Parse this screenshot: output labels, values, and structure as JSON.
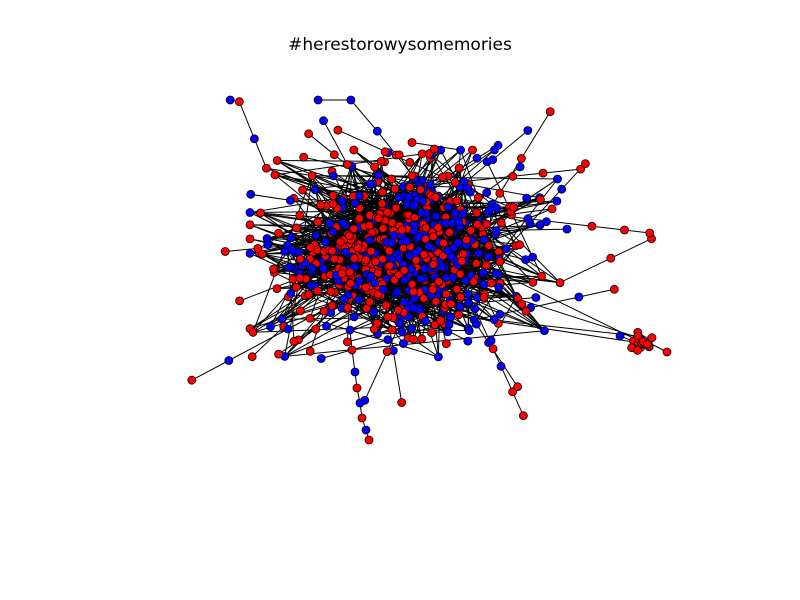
{
  "title": "#herestorowysomemories",
  "graph": {
    "type": "network",
    "node_classes": [
      {
        "class": "red",
        "color": "#ff0000"
      },
      {
        "class": "blue",
        "color": "#0000ff"
      }
    ],
    "edge_color": "#000000",
    "node_outline_color": "#000000",
    "axes_visible": false,
    "structure": "one dense core component with short radial chains, plus a small separate cluster at lower right"
  }
}
